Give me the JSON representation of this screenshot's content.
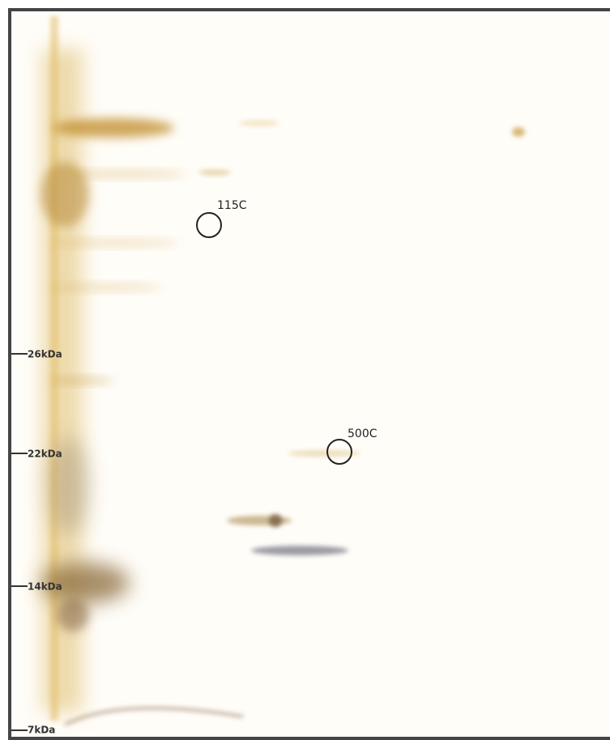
{
  "markers": [
    {
      "label": "26kDa"
    },
    {
      "label": "22kDa"
    },
    {
      "label": "14kDa"
    },
    {
      "label": "7kDa"
    }
  ],
  "spots": [
    {
      "label": "115C"
    },
    {
      "label": "500C"
    }
  ]
}
